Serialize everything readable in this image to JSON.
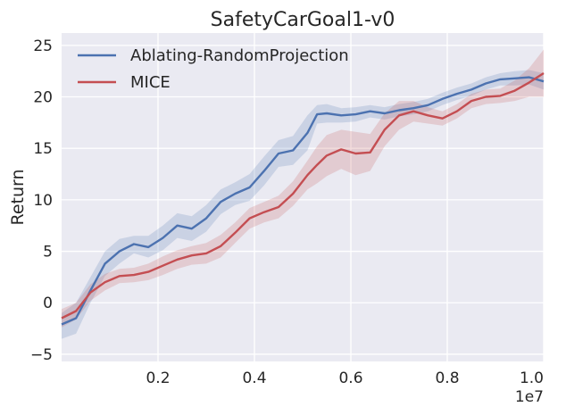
{
  "chart_data": {
    "type": "line",
    "title": "SafetyCarGoal1-v0",
    "xlabel": "",
    "ylabel": "Return",
    "x_offset_label": "1e7",
    "xlim": [
      0.0,
      1.0
    ],
    "ylim": [
      -5.7,
      26.2
    ],
    "xticks": [
      0.2,
      0.4,
      0.6,
      0.8,
      1.0
    ],
    "xtick_labels": [
      "0.2",
      "0.4",
      "0.6",
      "0.8",
      "1.0"
    ],
    "yticks": [
      -5,
      0,
      5,
      10,
      15,
      20,
      25
    ],
    "ytick_labels": [
      "−5",
      "0",
      "5",
      "10",
      "15",
      "20",
      "25"
    ],
    "grid": true,
    "legend_position": "top-left",
    "x": [
      0.0,
      0.03,
      0.06,
      0.09,
      0.12,
      0.15,
      0.18,
      0.21,
      0.24,
      0.27,
      0.3,
      0.33,
      0.36,
      0.39,
      0.42,
      0.45,
      0.48,
      0.51,
      0.53,
      0.55,
      0.58,
      0.61,
      0.64,
      0.67,
      0.7,
      0.73,
      0.76,
      0.79,
      0.82,
      0.85,
      0.88,
      0.91,
      0.94,
      0.97,
      1.0
    ],
    "series": [
      {
        "name": "Ablating-RandomProjection",
        "color": "#4c72b0",
        "values": [
          -2.1,
          -1.5,
          1.2,
          3.8,
          5.0,
          5.7,
          5.4,
          6.3,
          7.5,
          7.2,
          8.2,
          9.8,
          10.6,
          11.2,
          12.8,
          14.5,
          14.8,
          16.5,
          18.3,
          18.4,
          18.2,
          18.3,
          18.6,
          18.4,
          18.7,
          18.9,
          19.2,
          19.8,
          20.3,
          20.7,
          21.3,
          21.7,
          21.8,
          21.9,
          21.5
        ],
        "upper": [
          -1.0,
          0.0,
          2.5,
          5.0,
          6.2,
          6.5,
          6.5,
          7.5,
          8.7,
          8.4,
          9.5,
          11.0,
          11.7,
          12.5,
          14.2,
          15.8,
          16.2,
          18.2,
          19.2,
          19.3,
          18.9,
          19.0,
          19.2,
          19.0,
          19.3,
          19.5,
          19.8,
          20.4,
          20.9,
          21.3,
          21.9,
          22.3,
          22.5,
          22.6,
          22.3
        ],
        "lower": [
          -3.5,
          -3.0,
          0.0,
          2.6,
          3.8,
          4.8,
          4.4,
          5.1,
          6.3,
          6.0,
          6.9,
          8.6,
          9.5,
          9.9,
          11.4,
          13.2,
          13.4,
          14.8,
          17.4,
          17.5,
          17.5,
          17.6,
          18.0,
          17.8,
          18.1,
          18.3,
          18.6,
          19.2,
          19.7,
          20.1,
          20.7,
          21.1,
          21.1,
          21.2,
          20.7
        ]
      },
      {
        "name": "MICE",
        "color": "#c44e52",
        "values": [
          -1.5,
          -0.8,
          1.0,
          2.0,
          2.6,
          2.7,
          3.0,
          3.6,
          4.2,
          4.6,
          4.8,
          5.5,
          6.8,
          8.2,
          8.8,
          9.3,
          10.6,
          12.4,
          13.4,
          14.3,
          14.9,
          14.5,
          14.6,
          16.8,
          18.2,
          18.6,
          18.2,
          17.9,
          18.6,
          19.6,
          20.0,
          20.1,
          20.6,
          21.4,
          22.3
        ],
        "upper": [
          -0.6,
          0.0,
          1.8,
          2.8,
          3.3,
          3.4,
          3.8,
          4.5,
          5.1,
          5.5,
          5.8,
          6.6,
          7.8,
          9.2,
          9.8,
          10.4,
          11.8,
          13.8,
          15.2,
          16.3,
          16.8,
          16.6,
          16.4,
          18.4,
          19.6,
          19.6,
          19.0,
          18.6,
          19.3,
          20.3,
          20.7,
          20.8,
          21.6,
          22.8,
          24.6
        ],
        "lower": [
          -2.4,
          -1.6,
          0.2,
          1.2,
          1.9,
          2.0,
          2.2,
          2.7,
          3.3,
          3.7,
          3.8,
          4.4,
          5.8,
          7.2,
          7.8,
          8.2,
          9.4,
          11.0,
          11.6,
          12.3,
          13.0,
          12.4,
          12.8,
          15.2,
          16.8,
          17.6,
          17.4,
          17.2,
          17.9,
          18.9,
          19.3,
          19.4,
          19.6,
          20.0,
          20.0
        ]
      }
    ]
  }
}
